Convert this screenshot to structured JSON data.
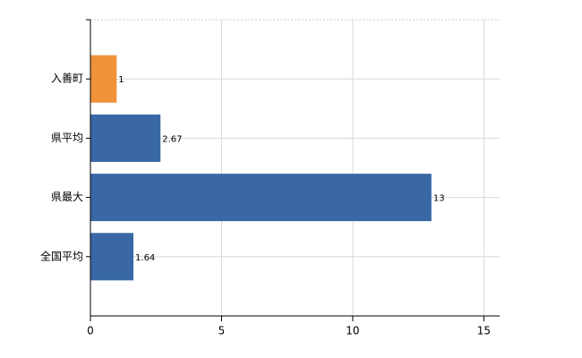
{
  "chart_data": {
    "type": "hbar",
    "categories": [
      "入善町",
      "県平均",
      "県最大",
      "全国平均"
    ],
    "values": [
      1,
      2.67,
      13,
      1.64
    ],
    "colors": [
      "#f0923a",
      "#3a68a6",
      "#3a68a6",
      "#3a68a6"
    ],
    "xlim": [
      0,
      15.6
    ],
    "xticks": [
      0,
      5,
      10,
      15
    ],
    "grid": true
  }
}
